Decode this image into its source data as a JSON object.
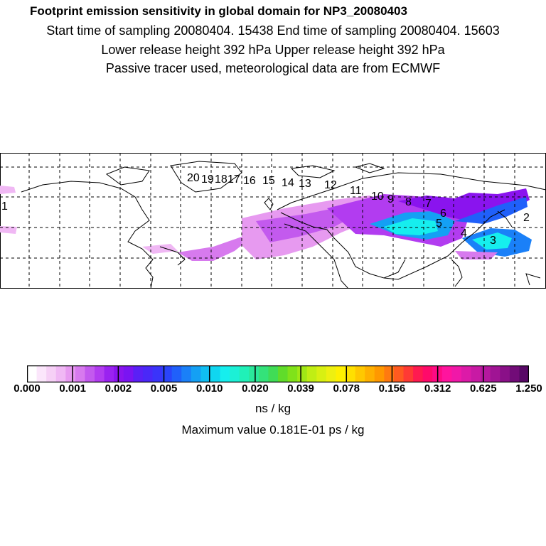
{
  "header": {
    "title": "Footprint emission sensitivity in global domain for NP3_20080403",
    "line1": "Start time of sampling 20080404. 15438     End time of sampling 20080404. 15603",
    "line2": "Lower release height  392 hPa        Upper release height  392 hPa",
    "line3": "Passive tracer used, meteorological data are from ECMWF"
  },
  "map": {
    "trajectory_labels": [
      "1",
      "2",
      "3",
      "4",
      "5",
      "6",
      "7",
      "8",
      "9",
      "10",
      "11",
      "12",
      "13",
      "14",
      "15",
      "16",
      "17",
      "18",
      "19",
      "20"
    ],
    "projection": "global lat-lon",
    "grid": "dashed"
  },
  "colorbar": {
    "ticks": [
      "0.000",
      "0.001",
      "0.002",
      "0.005",
      "0.010",
      "0.020",
      "0.039",
      "0.078",
      "0.156",
      "0.312",
      "0.625",
      "1.250"
    ],
    "colors": [
      "#ffffff",
      "#fbe6fb",
      "#f6d0f6",
      "#f0b8f4",
      "#e79af0",
      "#d77aee",
      "#c35aee",
      "#b23cf0",
      "#9a22f0",
      "#8a14ee",
      "#7a14f2",
      "#5a20f6",
      "#4a28f8",
      "#3a34fa",
      "#2a44fa",
      "#2060fa",
      "#1a80f8",
      "#14a0f4",
      "#10bef2",
      "#10d6f0",
      "#16eeee",
      "#1cf0d6",
      "#20f0b8",
      "#2ae89a",
      "#34e27a",
      "#40dc56",
      "#60dc2a",
      "#80e21a",
      "#a0e816",
      "#c0ee14",
      "#d8f012",
      "#eef010",
      "#fff000",
      "#ffe000",
      "#ffc800",
      "#ffb000",
      "#ff9800",
      "#ff7a10",
      "#ff5a20",
      "#ff3a34",
      "#ff1a50",
      "#ff0a6a",
      "#ff0a84",
      "#ff149e",
      "#f018a8",
      "#dc1aa8",
      "#c81aa4",
      "#b4189e",
      "#a01494",
      "#8a1088",
      "#720c78",
      "#580866"
    ],
    "units": "ns / kg",
    "max_value_text": "Maximum value  0.181E-01 ps / kg"
  }
}
